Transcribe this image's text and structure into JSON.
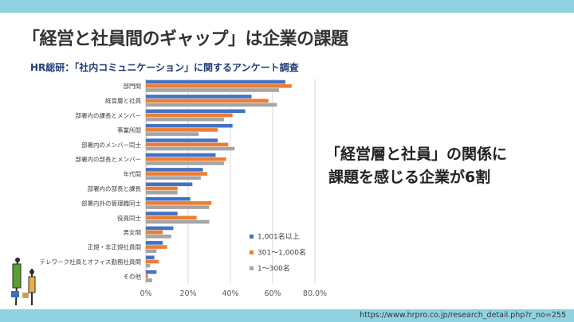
{
  "slide": {
    "title": "「経営と社員間のギャップ」は企業の課題",
    "subtitle": "HR総研：「社内コミュニケーション」に関するアンケート調査",
    "callout_line1": "「経営層と社員」の関係に",
    "callout_line2": "課題を感じる企業が6割",
    "source": "https://www.hrpro.co.jp/research_detail.php?r_no=255"
  },
  "colors": {
    "band": "#8fd3e2",
    "series": [
      "#4472c4",
      "#ed7d31",
      "#a5a5a5"
    ]
  },
  "chart_data": {
    "type": "bar",
    "orientation": "horizontal",
    "categories": [
      "部門間",
      "経営層と社員",
      "部署内の課長とメンバー",
      "事業所間",
      "部署内のメンバー同士",
      "部署内の部長とメンバー",
      "年代間",
      "部署内の部長と課長",
      "部署内外の管理職同士",
      "役員同士",
      "男女間",
      "正規・非正規社員間",
      "テレワーク社員とオフィス勤務社員間",
      "その他"
    ],
    "series": [
      {
        "name": "1,001名以上",
        "values": [
          66,
          50,
          47,
          41,
          34,
          33,
          27,
          22,
          21,
          15,
          13,
          8,
          4,
          5
        ]
      },
      {
        "name": "301～1,000名",
        "values": [
          69,
          58,
          41,
          34,
          39,
          38,
          29,
          15,
          31,
          24,
          8,
          10,
          6,
          1
        ]
      },
      {
        "name": "1～300名",
        "values": [
          63,
          62,
          37,
          25,
          42,
          37,
          26,
          15,
          30,
          30,
          12,
          5,
          2,
          3
        ]
      }
    ],
    "xlim": [
      0,
      80
    ],
    "xticks": [
      "0%",
      "20%",
      "40%",
      "60%",
      "80.0%"
    ],
    "legend_position": "bottom-right",
    "grid": true
  }
}
